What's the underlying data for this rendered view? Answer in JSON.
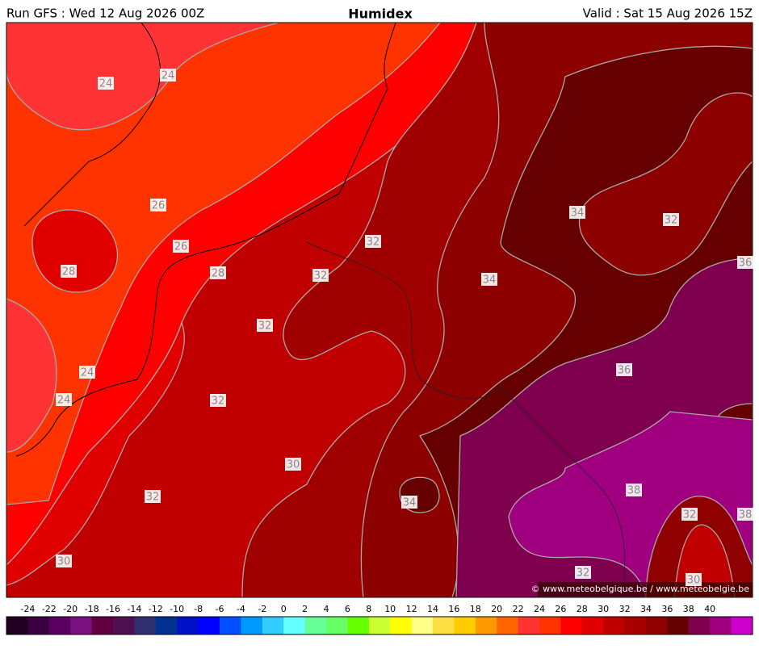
{
  "header": {
    "run": "Run GFS : Wed 12 Aug 2026 00Z",
    "title": "Humidex",
    "valid": "Valid : Sat 15 Aug 2026 15Z"
  },
  "contour_labels": [
    "24",
    "24",
    "26",
    "26",
    "28",
    "28",
    "32",
    "32",
    "34",
    "32",
    "36",
    "34",
    "32",
    "36",
    "24",
    "24",
    "32",
    "30",
    "38",
    "32",
    "34",
    "32",
    "38",
    "30",
    "32",
    "30"
  ],
  "copyright": "© www.meteobelgique.be / www.meteobelgie.be",
  "colorbar": {
    "labels": [
      -24,
      -22,
      -20,
      -18,
      -16,
      -14,
      -12,
      -10,
      -8,
      -6,
      -4,
      -2,
      0,
      2,
      4,
      6,
      8,
      10,
      12,
      14,
      16,
      18,
      20,
      22,
      24,
      26,
      28,
      30,
      32,
      34,
      36,
      38,
      40
    ],
    "colors": [
      "#200020",
      "#3a0040",
      "#5a0060",
      "#7a1080",
      "#600040",
      "#501050",
      "#303070",
      "#003090",
      "#0010c8",
      "#0000ff",
      "#0050ff",
      "#0099ff",
      "#33ccff",
      "#66ffff",
      "#66ff99",
      "#66ff66",
      "#66ff00",
      "#ccff33",
      "#ffff00",
      "#ffff88",
      "#ffe044",
      "#ffcc00",
      "#ff9900",
      "#ff6600",
      "#ff3333",
      "#ff3300",
      "#ff0000",
      "#e00000",
      "#c00000",
      "#a80000",
      "#900000",
      "#660000",
      "#800050",
      "#a00080",
      "#cc00cc"
    ]
  }
}
